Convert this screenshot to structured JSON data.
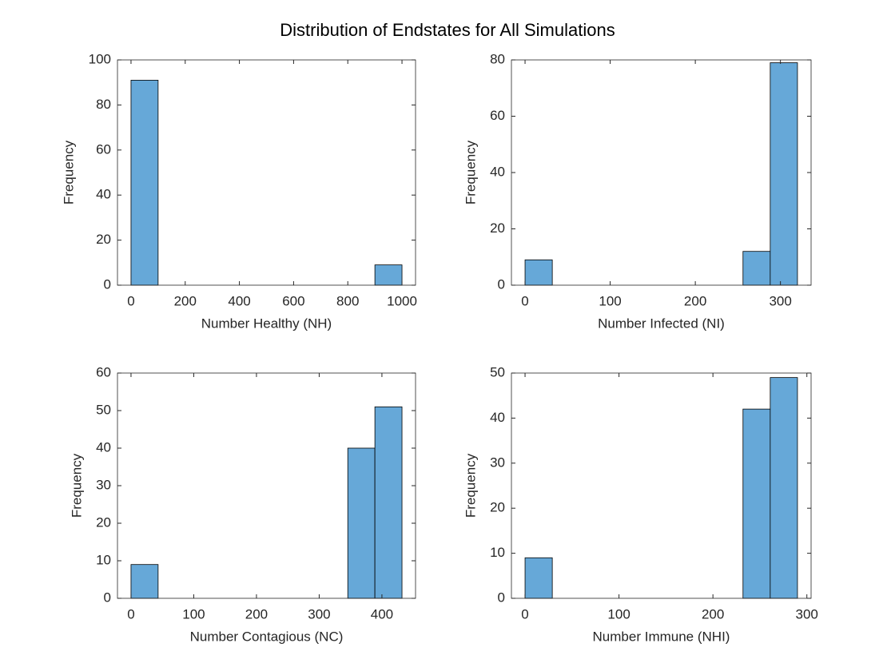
{
  "title": "Distribution of Endstates for All Simulations",
  "chart_data": [
    {
      "type": "histogram",
      "xlabel": "Number Healthy (NH)",
      "ylabel": "Frequency",
      "color": "#66a8d8",
      "bins": [
        0,
        100,
        200,
        300,
        400,
        500,
        600,
        700,
        800,
        900,
        1000
      ],
      "values": [
        91,
        0,
        0,
        0,
        0,
        0,
        0,
        0,
        0,
        9
      ],
      "xlim": [
        -50,
        1050
      ],
      "xticks": [
        0,
        200,
        400,
        600,
        800,
        1000
      ],
      "ylim": [
        0,
        100
      ],
      "yticks": [
        0,
        20,
        40,
        60,
        80,
        100
      ]
    },
    {
      "type": "histogram",
      "xlabel": "Number Infected (NI)",
      "ylabel": "Frequency",
      "color": "#66a8d8",
      "bins": [
        0,
        32,
        64,
        96,
        128,
        160,
        192,
        224,
        256,
        288,
        320
      ],
      "values": [
        9,
        0,
        0,
        0,
        0,
        0,
        0,
        0,
        12,
        79
      ],
      "xlim": [
        -16,
        336
      ],
      "xticks": [
        0,
        100,
        200,
        300
      ],
      "ylim": [
        0,
        80
      ],
      "yticks": [
        0,
        20,
        40,
        60,
        80
      ]
    },
    {
      "type": "histogram",
      "xlabel": "Number Contagious (NC)",
      "ylabel": "Frequency",
      "color": "#66a8d8",
      "bins": [
        0,
        43.2,
        86.4,
        129.6,
        172.8,
        216,
        259.2,
        302.4,
        345.6,
        388.8,
        432
      ],
      "values": [
        9,
        0,
        0,
        0,
        0,
        0,
        0,
        0,
        40,
        51
      ],
      "xlim": [
        -21.6,
        453.6
      ],
      "xticks": [
        0,
        100,
        200,
        300,
        400
      ],
      "ylim": [
        0,
        60
      ],
      "yticks": [
        0,
        10,
        20,
        30,
        40,
        50,
        60
      ]
    },
    {
      "type": "histogram",
      "xlabel": "Number Immune (NHI)",
      "ylabel": "Frequency",
      "color": "#66a8d8",
      "bins": [
        0,
        29,
        58,
        87,
        116,
        145,
        174,
        203,
        232,
        261,
        290
      ],
      "values": [
        9,
        0,
        0,
        0,
        0,
        0,
        0,
        0,
        42,
        49
      ],
      "xlim": [
        -14.5,
        304.5
      ],
      "xticks": [
        0,
        100,
        200,
        300
      ],
      "ylim": [
        0,
        50
      ],
      "yticks": [
        0,
        10,
        20,
        30,
        40,
        50
      ]
    }
  ]
}
